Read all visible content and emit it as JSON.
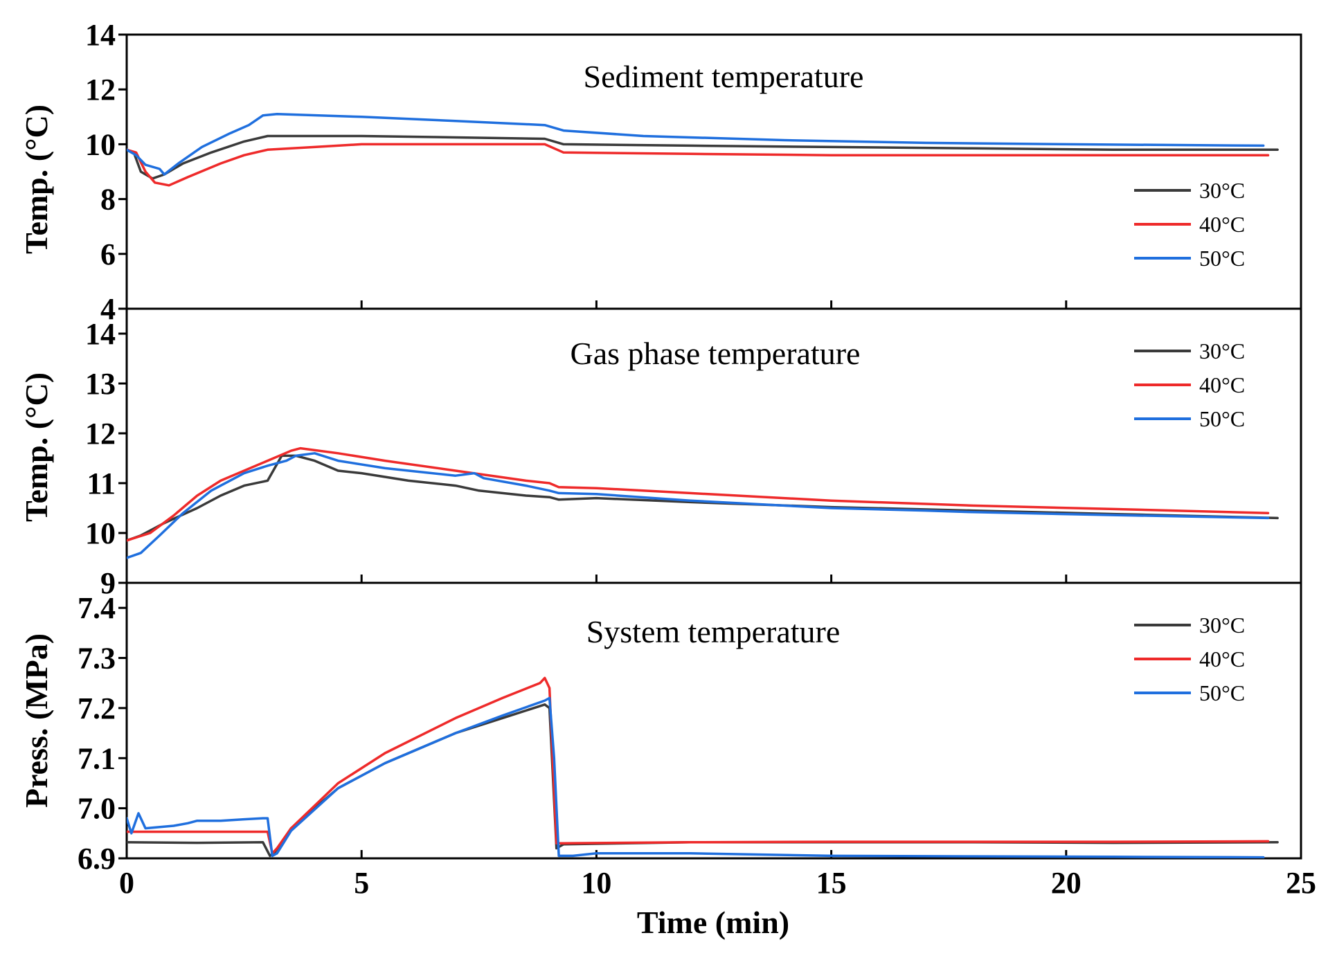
{
  "chart_data": [
    {
      "type": "line",
      "title": "Sediment temperature",
      "xlabel": "Time (min)",
      "ylabel": "Temp. (°C)",
      "xlim": [
        0,
        25
      ],
      "ylim": [
        4,
        14
      ],
      "yticks": [
        4,
        6,
        8,
        10,
        12,
        14
      ],
      "ytick_labels": [
        "4",
        "6",
        "8",
        "10",
        "12",
        "14"
      ],
      "legend_position": "right",
      "series": [
        {
          "name": "30°C",
          "color": "#3a3a3a",
          "points": [
            [
              0,
              9.8
            ],
            [
              0.15,
              9.7
            ],
            [
              0.3,
              9.0
            ],
            [
              0.55,
              8.75
            ],
            [
              0.8,
              8.9
            ],
            [
              1.2,
              9.3
            ],
            [
              1.8,
              9.7
            ],
            [
              2.5,
              10.1
            ],
            [
              3.0,
              10.3
            ],
            [
              3.5,
              10.3
            ],
            [
              5,
              10.3
            ],
            [
              7,
              10.25
            ],
            [
              8.9,
              10.2
            ],
            [
              9.3,
              10.0
            ],
            [
              12,
              9.95
            ],
            [
              15,
              9.9
            ],
            [
              18,
              9.85
            ],
            [
              21,
              9.8
            ],
            [
              24.5,
              9.8
            ]
          ]
        },
        {
          "name": "40°C",
          "color": "#ee2a2a",
          "points": [
            [
              0,
              9.8
            ],
            [
              0.2,
              9.7
            ],
            [
              0.4,
              9.0
            ],
            [
              0.6,
              8.6
            ],
            [
              0.9,
              8.5
            ],
            [
              1.3,
              8.8
            ],
            [
              2.0,
              9.3
            ],
            [
              2.5,
              9.6
            ],
            [
              3.0,
              9.8
            ],
            [
              4,
              9.9
            ],
            [
              5,
              10.0
            ],
            [
              7,
              10.0
            ],
            [
              8.9,
              10.0
            ],
            [
              9.3,
              9.7
            ],
            [
              12,
              9.65
            ],
            [
              15,
              9.6
            ],
            [
              18,
              9.6
            ],
            [
              21,
              9.6
            ],
            [
              24.3,
              9.6
            ]
          ]
        },
        {
          "name": "50°C",
          "color": "#1f6fde",
          "points": [
            [
              0,
              9.8
            ],
            [
              0.2,
              9.6
            ],
            [
              0.4,
              9.25
            ],
            [
              0.7,
              9.1
            ],
            [
              0.8,
              8.9
            ],
            [
              1.1,
              9.3
            ],
            [
              1.6,
              9.9
            ],
            [
              2.2,
              10.4
            ],
            [
              2.6,
              10.7
            ],
            [
              2.9,
              11.05
            ],
            [
              3.2,
              11.1
            ],
            [
              5,
              11.0
            ],
            [
              7,
              10.85
            ],
            [
              8.9,
              10.7
            ],
            [
              9.3,
              10.5
            ],
            [
              11,
              10.3
            ],
            [
              14,
              10.15
            ],
            [
              17,
              10.05
            ],
            [
              20,
              10.0
            ],
            [
              24.2,
              9.95
            ]
          ]
        }
      ]
    },
    {
      "type": "line",
      "title": "Gas phase temperature",
      "xlabel": "Time (min)",
      "ylabel": "Temp. (°C)",
      "xlim": [
        0,
        25
      ],
      "ylim": [
        9,
        14.5
      ],
      "yticks": [
        9,
        10,
        11,
        12,
        13,
        14
      ],
      "ytick_labels": [
        "9",
        "10",
        "11",
        "12",
        "13",
        "14"
      ],
      "legend_position": "right",
      "series": [
        {
          "name": "30°C",
          "color": "#3a3a3a",
          "points": [
            [
              0,
              9.85
            ],
            [
              0.3,
              9.95
            ],
            [
              0.8,
              10.2
            ],
            [
              1.5,
              10.5
            ],
            [
              2.0,
              10.75
            ],
            [
              2.5,
              10.95
            ],
            [
              3.0,
              11.05
            ],
            [
              3.3,
              11.55
            ],
            [
              3.6,
              11.55
            ],
            [
              4.0,
              11.45
            ],
            [
              4.5,
              11.25
            ],
            [
              5.0,
              11.2
            ],
            [
              6.0,
              11.05
            ],
            [
              7.0,
              10.95
            ],
            [
              7.5,
              10.85
            ],
            [
              8.5,
              10.75
            ],
            [
              9.0,
              10.72
            ],
            [
              9.2,
              10.67
            ],
            [
              10,
              10.7
            ],
            [
              12,
              10.62
            ],
            [
              15,
              10.52
            ],
            [
              18,
              10.45
            ],
            [
              21,
              10.38
            ],
            [
              24.5,
              10.3
            ]
          ]
        },
        {
          "name": "40°C",
          "color": "#ee2a2a",
          "points": [
            [
              0,
              9.85
            ],
            [
              0.5,
              10.0
            ],
            [
              1.0,
              10.35
            ],
            [
              1.5,
              10.75
            ],
            [
              2.0,
              11.05
            ],
            [
              2.5,
              11.25
            ],
            [
              3.0,
              11.45
            ],
            [
              3.5,
              11.65
            ],
            [
              3.7,
              11.7
            ],
            [
              4.5,
              11.6
            ],
            [
              5.5,
              11.45
            ],
            [
              7.0,
              11.25
            ],
            [
              8.5,
              11.05
            ],
            [
              9.0,
              11.0
            ],
            [
              9.2,
              10.92
            ],
            [
              10,
              10.9
            ],
            [
              12,
              10.8
            ],
            [
              15,
              10.65
            ],
            [
              18,
              10.55
            ],
            [
              21,
              10.48
            ],
            [
              24.3,
              10.4
            ]
          ]
        },
        {
          "name": "50°C",
          "color": "#1f6fde",
          "points": [
            [
              0,
              9.5
            ],
            [
              0.3,
              9.6
            ],
            [
              0.7,
              9.95
            ],
            [
              1.2,
              10.4
            ],
            [
              1.8,
              10.85
            ],
            [
              2.5,
              11.2
            ],
            [
              3.0,
              11.35
            ],
            [
              3.4,
              11.45
            ],
            [
              3.6,
              11.55
            ],
            [
              4.0,
              11.6
            ],
            [
              4.5,
              11.45
            ],
            [
              5.5,
              11.3
            ],
            [
              7.0,
              11.15
            ],
            [
              7.4,
              11.2
            ],
            [
              7.6,
              11.1
            ],
            [
              8.5,
              10.95
            ],
            [
              9.0,
              10.85
            ],
            [
              9.2,
              10.8
            ],
            [
              10,
              10.78
            ],
            [
              12,
              10.65
            ],
            [
              15,
              10.5
            ],
            [
              17,
              10.45
            ],
            [
              18,
              10.42
            ],
            [
              21,
              10.36
            ],
            [
              24.3,
              10.3
            ]
          ]
        }
      ]
    },
    {
      "type": "line",
      "title": "System temperature",
      "xlabel": "Time (min)",
      "ylabel": "Press. (MPa)",
      "xlim": [
        0,
        25
      ],
      "ylim": [
        6.9,
        7.45
      ],
      "yticks": [
        6.9,
        7.0,
        7.1,
        7.2,
        7.3,
        7.4
      ],
      "ytick_labels": [
        "6.9",
        "7.0",
        "7.1",
        "7.2",
        "7.3",
        "7.4"
      ],
      "xticks": [
        0,
        5,
        10,
        15,
        20,
        25
      ],
      "xtick_labels": [
        "0",
        "5",
        "10",
        "15",
        "20",
        "25"
      ],
      "legend_position": "right",
      "series": [
        {
          "name": "30°C",
          "color": "#3a3a3a",
          "points": [
            [
              0,
              6.932
            ],
            [
              1.5,
              6.931
            ],
            [
              2.9,
              6.932
            ],
            [
              3.05,
              6.905
            ],
            [
              3.15,
              6.912
            ],
            [
              3.5,
              6.96
            ],
            [
              4.5,
              7.04
            ],
            [
              5.5,
              7.09
            ],
            [
              7.0,
              7.15
            ],
            [
              8.0,
              7.18
            ],
            [
              8.9,
              7.207
            ],
            [
              9.0,
              7.2
            ],
            [
              9.15,
              6.92
            ],
            [
              9.3,
              6.928
            ],
            [
              12,
              6.932
            ],
            [
              15,
              6.932
            ],
            [
              18,
              6.932
            ],
            [
              21,
              6.931
            ],
            [
              24.5,
              6.932
            ]
          ]
        },
        {
          "name": "40°C",
          "color": "#ee2a2a",
          "points": [
            [
              0,
              6.953
            ],
            [
              1.5,
              6.953
            ],
            [
              3.0,
              6.953
            ],
            [
              3.1,
              6.91
            ],
            [
              3.2,
              6.92
            ],
            [
              3.5,
              6.96
            ],
            [
              4.5,
              7.05
            ],
            [
              5.5,
              7.11
            ],
            [
              7.0,
              7.18
            ],
            [
              8.0,
              7.22
            ],
            [
              8.8,
              7.25
            ],
            [
              8.9,
              7.26
            ],
            [
              9.0,
              7.24
            ],
            [
              9.15,
              6.93
            ],
            [
              9.3,
              6.93
            ],
            [
              12,
              6.932
            ],
            [
              15,
              6.933
            ],
            [
              18,
              6.933
            ],
            [
              21,
              6.933
            ],
            [
              24.3,
              6.934
            ]
          ]
        },
        {
          "name": "50°C",
          "color": "#1f6fde",
          "points": [
            [
              0,
              6.98
            ],
            [
              0.1,
              6.95
            ],
            [
              0.25,
              6.99
            ],
            [
              0.4,
              6.96
            ],
            [
              1.0,
              6.965
            ],
            [
              1.3,
              6.97
            ],
            [
              1.5,
              6.975
            ],
            [
              2.0,
              6.975
            ],
            [
              2.5,
              6.978
            ],
            [
              2.9,
              6.98
            ],
            [
              3.0,
              6.98
            ],
            [
              3.1,
              6.905
            ],
            [
              3.2,
              6.91
            ],
            [
              3.5,
              6.955
            ],
            [
              4.5,
              7.04
            ],
            [
              5.5,
              7.09
            ],
            [
              7.0,
              7.15
            ],
            [
              8.0,
              7.185
            ],
            [
              8.9,
              7.215
            ],
            [
              9.0,
              7.22
            ],
            [
              9.1,
              7.1
            ],
            [
              9.2,
              6.905
            ],
            [
              9.5,
              6.905
            ],
            [
              10,
              6.91
            ],
            [
              12,
              6.91
            ],
            [
              15,
              6.905
            ],
            [
              18,
              6.904
            ],
            [
              21,
              6.903
            ],
            [
              24.2,
              6.902
            ]
          ]
        }
      ]
    }
  ]
}
